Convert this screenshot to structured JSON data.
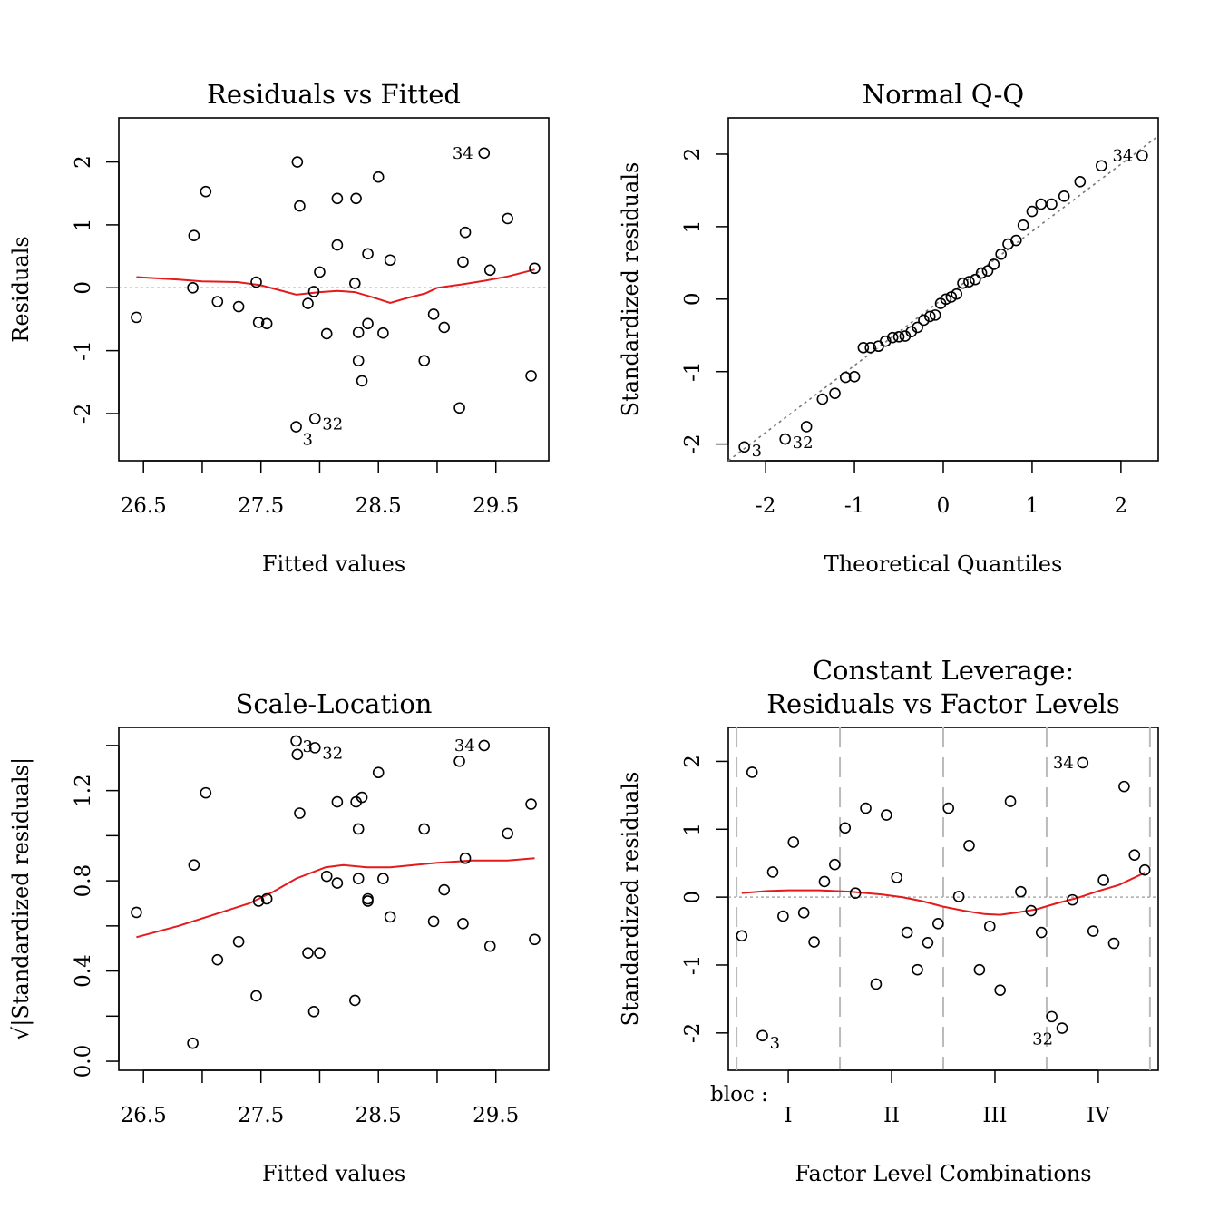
{
  "colors": {
    "smooth": "#e41a1c",
    "reference": "#aaaaaa",
    "qqline": "#777777",
    "points": "#000000",
    "bloc_divider": "#bbbbbb"
  },
  "chart_data": [
    {
      "id": "p1",
      "type": "scatter",
      "title": [
        "Residuals vs Fitted"
      ],
      "xlabel": "Fitted values",
      "ylabel": "Residuals",
      "xlim": [
        26.29,
        29.95
      ],
      "ylim": [
        -2.75,
        2.7
      ],
      "xticks": [
        26.5,
        27,
        27.5,
        28,
        28.5,
        29,
        29.5
      ],
      "xtick_labels": [
        "26.5",
        "",
        "27.5",
        "",
        "28.5",
        "",
        "29.5"
      ],
      "yticks": [
        -2,
        -1,
        0,
        1,
        2
      ],
      "ytick_labels": [
        "-2",
        "-1",
        "0",
        "1",
        "2"
      ],
      "refline": {
        "type": "h",
        "value": 0
      },
      "points": [
        [
          26.44,
          -0.47
        ],
        [
          26.93,
          0.83
        ],
        [
          26.92,
          0.0
        ],
        [
          27.03,
          1.53
        ],
        [
          27.13,
          -0.22
        ],
        [
          27.31,
          -0.3
        ],
        [
          27.46,
          0.09
        ],
        [
          27.48,
          -0.55
        ],
        [
          27.55,
          -0.57
        ],
        [
          27.81,
          2.0
        ],
        [
          27.83,
          1.3
        ],
        [
          27.8,
          -2.21
        ],
        [
          27.9,
          -0.25
        ],
        [
          27.95,
          -0.06
        ],
        [
          27.96,
          -2.08
        ],
        [
          28.0,
          0.25
        ],
        [
          28.06,
          -0.73
        ],
        [
          28.15,
          1.42
        ],
        [
          28.15,
          0.68
        ],
        [
          28.31,
          1.42
        ],
        [
          28.3,
          0.07
        ],
        [
          28.33,
          -0.71
        ],
        [
          28.33,
          -1.16
        ],
        [
          28.36,
          -1.48
        ],
        [
          28.41,
          0.54
        ],
        [
          28.41,
          -0.57
        ],
        [
          28.5,
          1.76
        ],
        [
          28.54,
          -0.72
        ],
        [
          28.6,
          0.44
        ],
        [
          28.89,
          -1.16
        ],
        [
          28.97,
          -0.42
        ],
        [
          29.06,
          -0.63
        ],
        [
          29.19,
          -1.91
        ],
        [
          29.22,
          0.41
        ],
        [
          29.24,
          0.88
        ],
        [
          29.4,
          2.14
        ],
        [
          29.45,
          0.28
        ],
        [
          29.6,
          1.1
        ],
        [
          29.8,
          -1.4
        ],
        [
          29.83,
          0.31
        ]
      ],
      "smooth": [
        [
          26.44,
          0.17
        ],
        [
          26.8,
          0.13
        ],
        [
          27.0,
          0.1
        ],
        [
          27.3,
          0.09
        ],
        [
          27.5,
          0.04
        ],
        [
          27.8,
          -0.11
        ],
        [
          28.0,
          -0.07
        ],
        [
          28.15,
          -0.05
        ],
        [
          28.3,
          -0.07
        ],
        [
          28.45,
          -0.15
        ],
        [
          28.6,
          -0.24
        ],
        [
          28.75,
          -0.16
        ],
        [
          28.9,
          -0.09
        ],
        [
          29.0,
          0.0
        ],
        [
          29.2,
          0.05
        ],
        [
          29.4,
          0.11
        ],
        [
          29.6,
          0.18
        ],
        [
          29.83,
          0.29
        ]
      ],
      "labels": [
        {
          "text": "34",
          "i": 35
        },
        {
          "text": "3",
          "i": 11
        },
        {
          "text": "32",
          "i": 14
        }
      ]
    },
    {
      "id": "p2",
      "type": "scatter",
      "title": [
        "Normal Q-Q"
      ],
      "xlabel": "Theoretical Quantiles",
      "ylabel": "Standardized residuals",
      "xlim": [
        -2.42,
        2.42
      ],
      "ylim": [
        -2.23,
        2.5
      ],
      "xticks": [
        -2,
        -1,
        0,
        1,
        2
      ],
      "xtick_labels": [
        "-2",
        "-1",
        "0",
        "1",
        "2"
      ],
      "yticks": [
        -2,
        -1,
        0,
        1,
        2
      ],
      "ytick_labels": [
        "-2",
        "-1",
        "0",
        "1",
        "2"
      ],
      "refline": {
        "type": "ab",
        "points": [
          [
            -2.42,
            -2.23
          ],
          [
            2.42,
            2.25
          ]
        ]
      },
      "points": [
        [
          -2.24,
          -2.04
        ],
        [
          -1.78,
          -1.93
        ],
        [
          -1.54,
          -1.76
        ],
        [
          -1.36,
          -1.38
        ],
        [
          -1.22,
          -1.3
        ],
        [
          -1.1,
          -1.08
        ],
        [
          -1.0,
          -1.07
        ],
        [
          -0.9,
          -0.67
        ],
        [
          -0.82,
          -0.67
        ],
        [
          -0.73,
          -0.65
        ],
        [
          -0.65,
          -0.58
        ],
        [
          -0.57,
          -0.53
        ],
        [
          -0.5,
          -0.52
        ],
        [
          -0.43,
          -0.51
        ],
        [
          -0.36,
          -0.45
        ],
        [
          -0.29,
          -0.39
        ],
        [
          -0.22,
          -0.29
        ],
        [
          -0.15,
          -0.24
        ],
        [
          -0.09,
          -0.22
        ],
        [
          -0.03,
          -0.06
        ],
        [
          0.03,
          0.0
        ],
        [
          0.09,
          0.03
        ],
        [
          0.15,
          0.07
        ],
        [
          0.22,
          0.22
        ],
        [
          0.29,
          0.24
        ],
        [
          0.36,
          0.27
        ],
        [
          0.43,
          0.36
        ],
        [
          0.5,
          0.39
        ],
        [
          0.57,
          0.48
        ],
        [
          0.65,
          0.62
        ],
        [
          0.73,
          0.76
        ],
        [
          0.82,
          0.81
        ],
        [
          0.9,
          1.02
        ],
        [
          1.0,
          1.21
        ],
        [
          1.1,
          1.31
        ],
        [
          1.22,
          1.31
        ],
        [
          1.36,
          1.42
        ],
        [
          1.54,
          1.62
        ],
        [
          1.78,
          1.84
        ],
        [
          2.24,
          1.98
        ]
      ],
      "labels": [
        {
          "text": "34",
          "i": 39
        },
        {
          "text": "3",
          "i": 0
        },
        {
          "text": "32",
          "i": 1
        }
      ]
    },
    {
      "id": "p3",
      "type": "scatter",
      "title": [
        "Scale-Location"
      ],
      "xlabel": "Fitted values",
      "ylabel": "√|Standardized residuals|",
      "xlim": [
        26.29,
        29.95
      ],
      "ylim": [
        -0.04,
        1.48
      ],
      "xticks": [
        26.5,
        27,
        27.5,
        28,
        28.5,
        29,
        29.5
      ],
      "xtick_labels": [
        "26.5",
        "",
        "27.5",
        "",
        "28.5",
        "",
        "29.5"
      ],
      "yticks": [
        0,
        0.2,
        0.4,
        0.6,
        0.8,
        1.0,
        1.2,
        1.4
      ],
      "ytick_labels": [
        "0.0",
        "",
        "0.4",
        "",
        "0.8",
        "",
        "1.2",
        ""
      ],
      "points": [
        [
          26.44,
          0.66
        ],
        [
          26.93,
          0.87
        ],
        [
          26.92,
          0.08
        ],
        [
          27.03,
          1.19
        ],
        [
          27.13,
          0.45
        ],
        [
          27.31,
          0.53
        ],
        [
          27.46,
          0.29
        ],
        [
          27.48,
          0.71
        ],
        [
          27.55,
          0.72
        ],
        [
          27.81,
          1.36
        ],
        [
          27.83,
          1.1
        ],
        [
          27.8,
          1.42
        ],
        [
          27.9,
          0.48
        ],
        [
          27.95,
          0.22
        ],
        [
          27.96,
          1.39
        ],
        [
          28.0,
          0.48
        ],
        [
          28.06,
          0.82
        ],
        [
          28.15,
          1.15
        ],
        [
          28.15,
          0.79
        ],
        [
          28.31,
          1.15
        ],
        [
          28.3,
          0.27
        ],
        [
          28.33,
          0.81
        ],
        [
          28.33,
          1.03
        ],
        [
          28.36,
          1.17
        ],
        [
          28.41,
          0.72
        ],
        [
          28.41,
          0.71
        ],
        [
          28.5,
          1.28
        ],
        [
          28.54,
          0.81
        ],
        [
          28.6,
          0.64
        ],
        [
          28.89,
          1.03
        ],
        [
          28.97,
          0.62
        ],
        [
          29.06,
          0.76
        ],
        [
          29.19,
          1.33
        ],
        [
          29.22,
          0.61
        ],
        [
          29.24,
          0.9
        ],
        [
          29.4,
          1.4
        ],
        [
          29.45,
          0.51
        ],
        [
          29.6,
          1.01
        ],
        [
          29.8,
          1.14
        ],
        [
          29.83,
          0.54
        ]
      ],
      "smooth": [
        [
          26.44,
          0.55
        ],
        [
          26.8,
          0.6
        ],
        [
          27.1,
          0.65
        ],
        [
          27.4,
          0.7
        ],
        [
          27.6,
          0.75
        ],
        [
          27.8,
          0.81
        ],
        [
          27.95,
          0.84
        ],
        [
          28.05,
          0.86
        ],
        [
          28.2,
          0.87
        ],
        [
          28.4,
          0.86
        ],
        [
          28.6,
          0.86
        ],
        [
          28.8,
          0.87
        ],
        [
          29.0,
          0.88
        ],
        [
          29.3,
          0.89
        ],
        [
          29.6,
          0.89
        ],
        [
          29.83,
          0.9
        ]
      ],
      "labels": [
        {
          "text": "34",
          "i": 35
        },
        {
          "text": "3",
          "i": 11
        },
        {
          "text": "32",
          "i": 14
        }
      ]
    },
    {
      "id": "p4",
      "type": "scatter",
      "title": [
        "Constant Leverage:",
        "Residuals vs Factor Levels"
      ],
      "xlabel": "Factor Level Combinations",
      "ylabel": "Standardized residuals",
      "factor_name": "bloc :",
      "xlim": [
        0.42,
        4.58
      ],
      "ylim": [
        -2.55,
        2.5
      ],
      "xticks": [
        1,
        2,
        3,
        4
      ],
      "xtick_labels": [
        "I",
        "II",
        "III",
        "IV"
      ],
      "yticks": [
        -2,
        -1,
        0,
        1,
        2
      ],
      "ytick_labels": [
        "-2",
        "-1",
        "0",
        "1",
        "2"
      ],
      "refline": {
        "type": "h",
        "value": 0
      },
      "vlines": [
        0.5,
        1.5,
        2.5,
        3.5,
        4.5
      ],
      "points": [
        [
          0.55,
          -0.57
        ],
        [
          0.65,
          1.84
        ],
        [
          0.75,
          -2.04
        ],
        [
          0.85,
          0.37
        ],
        [
          0.95,
          -0.28
        ],
        [
          1.05,
          0.81
        ],
        [
          1.15,
          -0.23
        ],
        [
          1.25,
          -0.66
        ],
        [
          1.35,
          0.23
        ],
        [
          1.45,
          0.48
        ],
        [
          1.55,
          1.02
        ],
        [
          1.65,
          0.06
        ],
        [
          1.75,
          1.31
        ],
        [
          1.85,
          -1.28
        ],
        [
          1.95,
          1.21
        ],
        [
          2.05,
          0.29
        ],
        [
          2.15,
          -0.52
        ],
        [
          2.25,
          -1.07
        ],
        [
          2.35,
          -0.67
        ],
        [
          2.45,
          -0.39
        ],
        [
          2.55,
          1.31
        ],
        [
          2.65,
          0.01
        ],
        [
          2.75,
          0.76
        ],
        [
          2.85,
          -1.07
        ],
        [
          2.95,
          -0.43
        ],
        [
          3.05,
          -1.37
        ],
        [
          3.15,
          1.41
        ],
        [
          3.25,
          0.08
        ],
        [
          3.35,
          -0.2
        ],
        [
          3.45,
          -0.52
        ],
        [
          3.55,
          -1.76
        ],
        [
          3.65,
          -1.93
        ],
        [
          3.75,
          -0.04
        ],
        [
          3.85,
          1.98
        ],
        [
          3.95,
          -0.5
        ],
        [
          4.05,
          0.25
        ],
        [
          4.15,
          -0.68
        ],
        [
          4.25,
          1.63
        ],
        [
          4.35,
          0.62
        ],
        [
          4.45,
          0.4
        ]
      ],
      "smooth": [
        [
          0.55,
          0.06
        ],
        [
          0.8,
          0.09
        ],
        [
          1.0,
          0.1
        ],
        [
          1.3,
          0.1
        ],
        [
          1.6,
          0.08
        ],
        [
          1.9,
          0.04
        ],
        [
          2.1,
          0.0
        ],
        [
          2.3,
          -0.06
        ],
        [
          2.5,
          -0.14
        ],
        [
          2.7,
          -0.2
        ],
        [
          2.9,
          -0.25
        ],
        [
          3.05,
          -0.26
        ],
        [
          3.2,
          -0.23
        ],
        [
          3.4,
          -0.18
        ],
        [
          3.6,
          -0.09
        ],
        [
          3.8,
          -0.01
        ],
        [
          4.0,
          0.09
        ],
        [
          4.2,
          0.18
        ],
        [
          4.45,
          0.36
        ]
      ],
      "labels": [
        {
          "text": "34",
          "i": 33
        },
        {
          "text": "3",
          "i": 2
        },
        {
          "text": "32",
          "i": 31
        }
      ]
    }
  ]
}
